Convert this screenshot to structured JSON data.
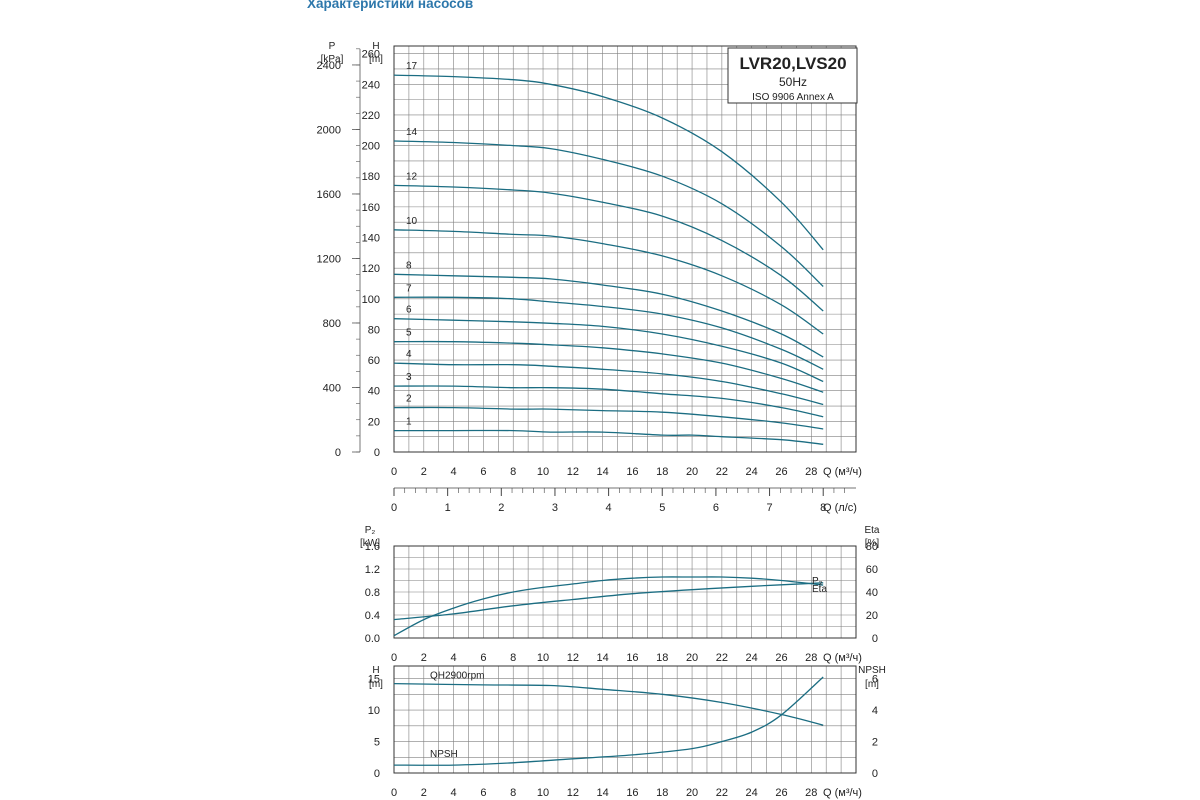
{
  "page": {
    "title": "Характеристики насосов"
  },
  "colors": {
    "curve": "#1b6d82",
    "grid": "#808080",
    "title": "#2d77ab"
  },
  "chart_data": [
    {
      "id": "qh",
      "type": "line",
      "title": "LVR20,LVS20",
      "subtitle": "50Hz",
      "note": "ISO 9906 Annex A",
      "xlabel": "Q (м³/ч)",
      "ylabel": "H",
      "yunit": "[m]",
      "y2label": "P",
      "y2unit": "[kPa]",
      "xlim": [
        0,
        31
      ],
      "ylim": [
        0,
        265
      ],
      "xticks": [
        0,
        2,
        4,
        6,
        8,
        10,
        12,
        14,
        16,
        18,
        20,
        22,
        24,
        26,
        28
      ],
      "yticks": [
        0,
        20,
        40,
        60,
        80,
        100,
        120,
        140,
        160,
        180,
        200,
        220,
        240,
        260
      ],
      "y2ticks": [
        0,
        400,
        800,
        1200,
        1600,
        2000,
        2400
      ],
      "grid": true,
      "x2": {
        "label": "Q (л/с)",
        "ticks": [
          "0",
          "1",
          "2",
          "3",
          "4",
          "5",
          "6",
          "7",
          "8"
        ]
      },
      "series": [
        {
          "name": "17",
          "x": [
            0,
            4,
            8,
            10.5,
            14,
            18,
            22,
            26,
            28.8
          ],
          "y": [
            246,
            245,
            243,
            240,
            232,
            218,
            196,
            163,
            132
          ]
        },
        {
          "name": "14",
          "x": [
            0,
            4,
            8,
            10.5,
            14,
            18,
            22,
            26,
            28.8
          ],
          "y": [
            203,
            202,
            200,
            198,
            191,
            180,
            162,
            134,
            108
          ]
        },
        {
          "name": "12",
          "x": [
            0,
            4,
            8,
            10.5,
            14,
            18,
            22,
            26,
            28.8
          ],
          "y": [
            174,
            173,
            171,
            169,
            163,
            154,
            138,
            115,
            92
          ]
        },
        {
          "name": "10",
          "x": [
            0,
            4,
            8,
            10.5,
            14,
            18,
            22,
            26,
            28.8
          ],
          "y": [
            145,
            144,
            142,
            141,
            136,
            128,
            115,
            96,
            77
          ]
        },
        {
          "name": "8",
          "x": [
            0,
            4,
            8,
            10.5,
            14,
            18,
            22,
            26,
            28.8
          ],
          "y": [
            116,
            115,
            114,
            113,
            109,
            103,
            92,
            77,
            62
          ]
        },
        {
          "name": "7",
          "x": [
            0,
            4,
            8,
            10.5,
            14,
            18,
            22,
            26,
            28.8
          ],
          "y": [
            101,
            101,
            100,
            98,
            95,
            90,
            81,
            67,
            54
          ]
        },
        {
          "name": "6",
          "x": [
            0,
            4,
            8,
            10.5,
            14,
            18,
            22,
            26,
            28.8
          ],
          "y": [
            87,
            86,
            85,
            84,
            82,
            77,
            69,
            58,
            46
          ]
        },
        {
          "name": "5",
          "x": [
            0,
            4,
            8,
            10.5,
            14,
            18,
            22,
            26,
            28.8
          ],
          "y": [
            72,
            72,
            71,
            70,
            68,
            64,
            58,
            48,
            39
          ]
        },
        {
          "name": "4",
          "x": [
            0,
            4,
            8,
            10.5,
            14,
            18,
            22,
            26,
            28.8
          ],
          "y": [
            58,
            57,
            57,
            56,
            54,
            51,
            46,
            38,
            31
          ]
        },
        {
          "name": "3",
          "x": [
            0,
            4,
            8,
            10.5,
            14,
            18,
            22,
            26,
            28.8
          ],
          "y": [
            43,
            43,
            42,
            42,
            41,
            38,
            35,
            29,
            23
          ]
        },
        {
          "name": "2",
          "x": [
            0,
            4,
            8,
            10.5,
            14,
            18,
            22,
            26,
            28.8
          ],
          "y": [
            29,
            29,
            28,
            28,
            27,
            26,
            23,
            19,
            15
          ]
        },
        {
          "name": "1",
          "x": [
            0,
            4,
            8,
            10.5,
            14,
            18,
            20,
            22,
            26,
            28.8
          ],
          "y": [
            14,
            14,
            14,
            13,
            13,
            11,
            11,
            10,
            8,
            5
          ]
        }
      ]
    },
    {
      "id": "power",
      "type": "line",
      "xlabel": "Q (м³/ч)",
      "ylabel": "P₂",
      "yunit": "[kW]",
      "y2label": "Eta",
      "y2unit": "[%]",
      "xlim": [
        0,
        31
      ],
      "ylim": [
        0,
        1.6
      ],
      "y2lim": [
        0,
        80
      ],
      "xticks": [
        0,
        2,
        4,
        6,
        8,
        10,
        12,
        14,
        16,
        18,
        20,
        22,
        24,
        26,
        28
      ],
      "yticks": [
        "0.0",
        "0.4",
        "0.8",
        "1.2",
        "1.6"
      ],
      "y2ticks": [
        0,
        20,
        40,
        60,
        80
      ],
      "grid": true,
      "series": [
        {
          "name": "Eta",
          "axis": "right",
          "x": [
            0,
            2,
            4,
            6,
            8,
            10,
            12,
            14,
            16,
            18,
            20,
            22,
            24,
            26,
            28.8
          ],
          "y": [
            2,
            16,
            26,
            34,
            40,
            44,
            47,
            50,
            52,
            53,
            53,
            53,
            52,
            50,
            46
          ]
        },
        {
          "name": "P₂",
          "axis": "left",
          "x": [
            0,
            4,
            8,
            12,
            16,
            20,
            24,
            28.8
          ],
          "y": [
            0.32,
            0.42,
            0.56,
            0.67,
            0.77,
            0.84,
            0.9,
            0.96
          ]
        }
      ]
    },
    {
      "id": "npsh",
      "type": "line",
      "xlabel": "Q (м³/ч)",
      "ylabel": "H",
      "yunit": "[m]",
      "y2label": "NPSH",
      "y2unit": "[m]",
      "xlim": [
        0,
        31
      ],
      "ylim": [
        0,
        17
      ],
      "y2lim": [
        0,
        6.8
      ],
      "xticks": [
        0,
        2,
        4,
        6,
        8,
        10,
        12,
        14,
        16,
        18,
        20,
        22,
        24,
        26,
        28
      ],
      "yticks": [
        0,
        5,
        10,
        15
      ],
      "y2ticks": [
        0,
        2,
        4,
        6
      ],
      "grid": true,
      "series": [
        {
          "name": "QH2900rpm",
          "axis": "left",
          "x": [
            0,
            6,
            10.5,
            14,
            18,
            22,
            26,
            28.8
          ],
          "y": [
            14.2,
            14,
            13.9,
            13.3,
            12.5,
            11.2,
            9.3,
            7.6
          ]
        },
        {
          "name": "NPSH",
          "axis": "right",
          "x": [
            0,
            4,
            8,
            12,
            16,
            20,
            22,
            24,
            26,
            28.8
          ],
          "y": [
            0.5,
            0.5,
            0.65,
            0.9,
            1.15,
            1.55,
            2.0,
            2.6,
            3.7,
            6.1
          ]
        }
      ]
    }
  ]
}
